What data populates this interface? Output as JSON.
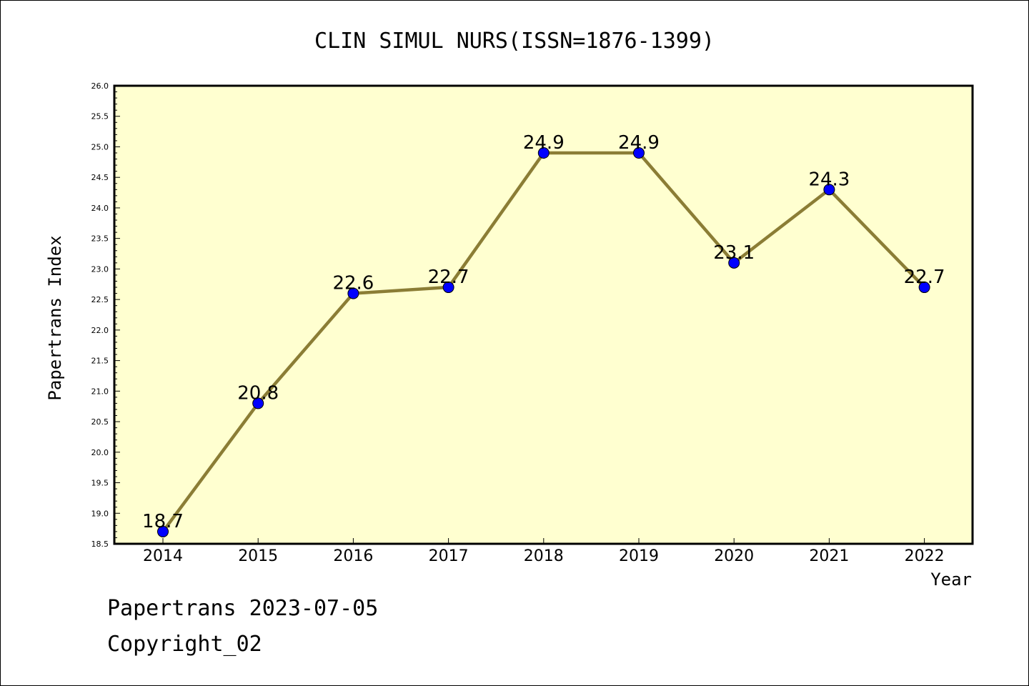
{
  "chart_data": {
    "type": "line",
    "title": "CLIN SIMUL NURS(ISSN=1876-1399)",
    "xlabel": "Year",
    "ylabel": "Papertrans Index",
    "categories": [
      "2014",
      "2015",
      "2016",
      "2017",
      "2018",
      "2019",
      "2020",
      "2021",
      "2022"
    ],
    "series": [
      {
        "values": [
          18.7,
          20.8,
          22.6,
          22.7,
          24.9,
          24.9,
          23.1,
          24.3,
          22.7
        ]
      }
    ],
    "data_labels": [
      "18.7",
      "20.8",
      "22.6",
      "22.7",
      "24.9",
      "24.9",
      "23.1",
      "24.3",
      "22.7"
    ],
    "ylim": [
      18.5,
      26.0
    ],
    "yticks": [
      "18.5",
      "19.0",
      "19.5",
      "20.0",
      "20.5",
      "21.0",
      "21.5",
      "22.0",
      "22.5",
      "23.0",
      "23.5",
      "24.0",
      "24.5",
      "25.0",
      "25.5",
      "26.0"
    ],
    "grid": false,
    "colors": {
      "plot_background": "#ffffd0",
      "line": "#8b7d35",
      "marker": "#0000ff"
    }
  },
  "footer": {
    "line1": "Papertrans 2023-07-05",
    "line2": "Copyright_02"
  }
}
